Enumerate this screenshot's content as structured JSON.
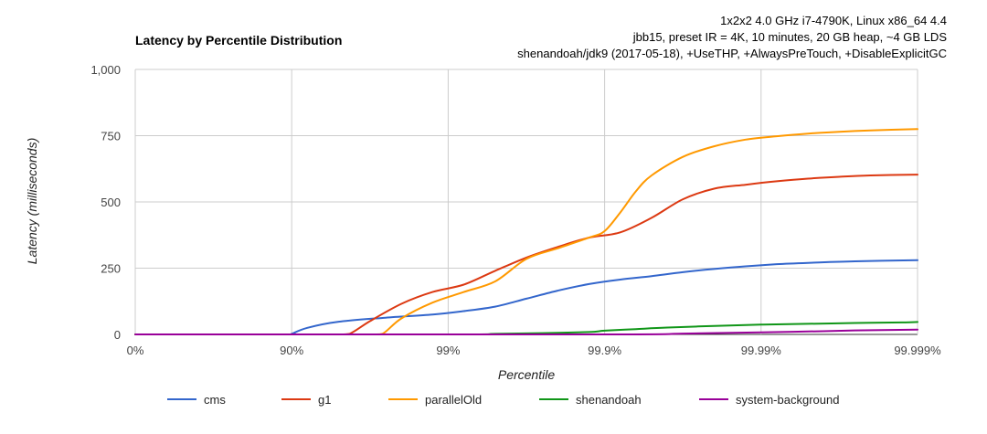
{
  "chart_data": {
    "type": "line",
    "title": "Latency by Percentile Distribution",
    "subtitle_lines": [
      "1x2x2 4.0 GHz i7-4790K, Linux x86_64 4.4",
      "jbb15, preset IR = 4K, 10 minutes, 20 GB heap, ~4 GB LDS",
      "shenandoah/jdk9 (2017-05-18), +UseTHP, +AlwaysPreTouch, +DisableExplicitGC"
    ],
    "xlabel": "Percentile",
    "ylabel": "Latency (milliseconds)",
    "x_scale": "log-nines",
    "x_ticks": [
      "0%",
      "90%",
      "99%",
      "99.9%",
      "99.99%",
      "99.999%"
    ],
    "x_tick_nines": [
      0,
      1,
      2,
      3,
      4,
      5
    ],
    "ylim": [
      0,
      1000
    ],
    "y_ticks": [
      "0",
      "250",
      "500",
      "750",
      "1,000"
    ],
    "y_tick_values": [
      0,
      250,
      500,
      750,
      1000
    ],
    "grid": true,
    "legend_position": "bottom",
    "series": [
      {
        "name": "cms",
        "color": "#3366cc",
        "x_nines": [
          0,
          0.5,
          0.99,
          1.0,
          1.1,
          1.3,
          1.6,
          1.9,
          2.1,
          2.3,
          2.5,
          2.7,
          2.9,
          3.1,
          3.3,
          3.5,
          3.7,
          3.9,
          4.1,
          4.3,
          4.6,
          5.0
        ],
        "values": [
          0,
          0,
          0,
          2,
          25,
          48,
          63,
          75,
          88,
          105,
          135,
          165,
          190,
          207,
          220,
          235,
          247,
          257,
          265,
          270,
          276,
          280
        ]
      },
      {
        "name": "g1",
        "color": "#dc3912",
        "x_nines": [
          0,
          1.0,
          1.3,
          1.37,
          1.5,
          1.7,
          1.9,
          2.1,
          2.3,
          2.5,
          2.7,
          2.9,
          3.1,
          3.3,
          3.5,
          3.7,
          3.9,
          4.1,
          4.3,
          4.5,
          4.7,
          5.0
        ],
        "values": [
          0,
          0,
          0,
          2,
          50,
          115,
          160,
          188,
          240,
          290,
          330,
          365,
          385,
          440,
          510,
          550,
          565,
          578,
          588,
          595,
          600,
          603
        ]
      },
      {
        "name": "parallelOld",
        "color": "#ff9900",
        "x_nines": [
          0,
          1.0,
          1.5,
          1.58,
          1.7,
          1.9,
          2.1,
          2.3,
          2.5,
          2.7,
          2.9,
          3.0,
          3.1,
          3.2,
          3.3,
          3.5,
          3.7,
          3.9,
          4.1,
          4.3,
          4.5,
          4.7,
          5.0
        ],
        "values": [
          0,
          0,
          0,
          2,
          60,
          120,
          160,
          200,
          285,
          325,
          365,
          390,
          460,
          540,
          600,
          670,
          710,
          735,
          748,
          758,
          765,
          770,
          775
        ]
      },
      {
        "name": "shenandoah",
        "color": "#109618",
        "x_nines": [
          0,
          2.0,
          2.3,
          2.6,
          2.9,
          3.0,
          3.2,
          3.4,
          3.7,
          4.0,
          4.3,
          4.6,
          4.9,
          5.0
        ],
        "values": [
          0,
          0,
          2,
          5,
          9,
          14,
          20,
          26,
          32,
          37,
          40,
          43,
          45,
          47
        ]
      },
      {
        "name": "system-background",
        "color": "#990099",
        "x_nines": [
          0,
          3.0,
          3.5,
          4.0,
          4.3,
          4.6,
          5.0
        ],
        "values": [
          0,
          0,
          3,
          8,
          11,
          15,
          18
        ]
      }
    ]
  }
}
